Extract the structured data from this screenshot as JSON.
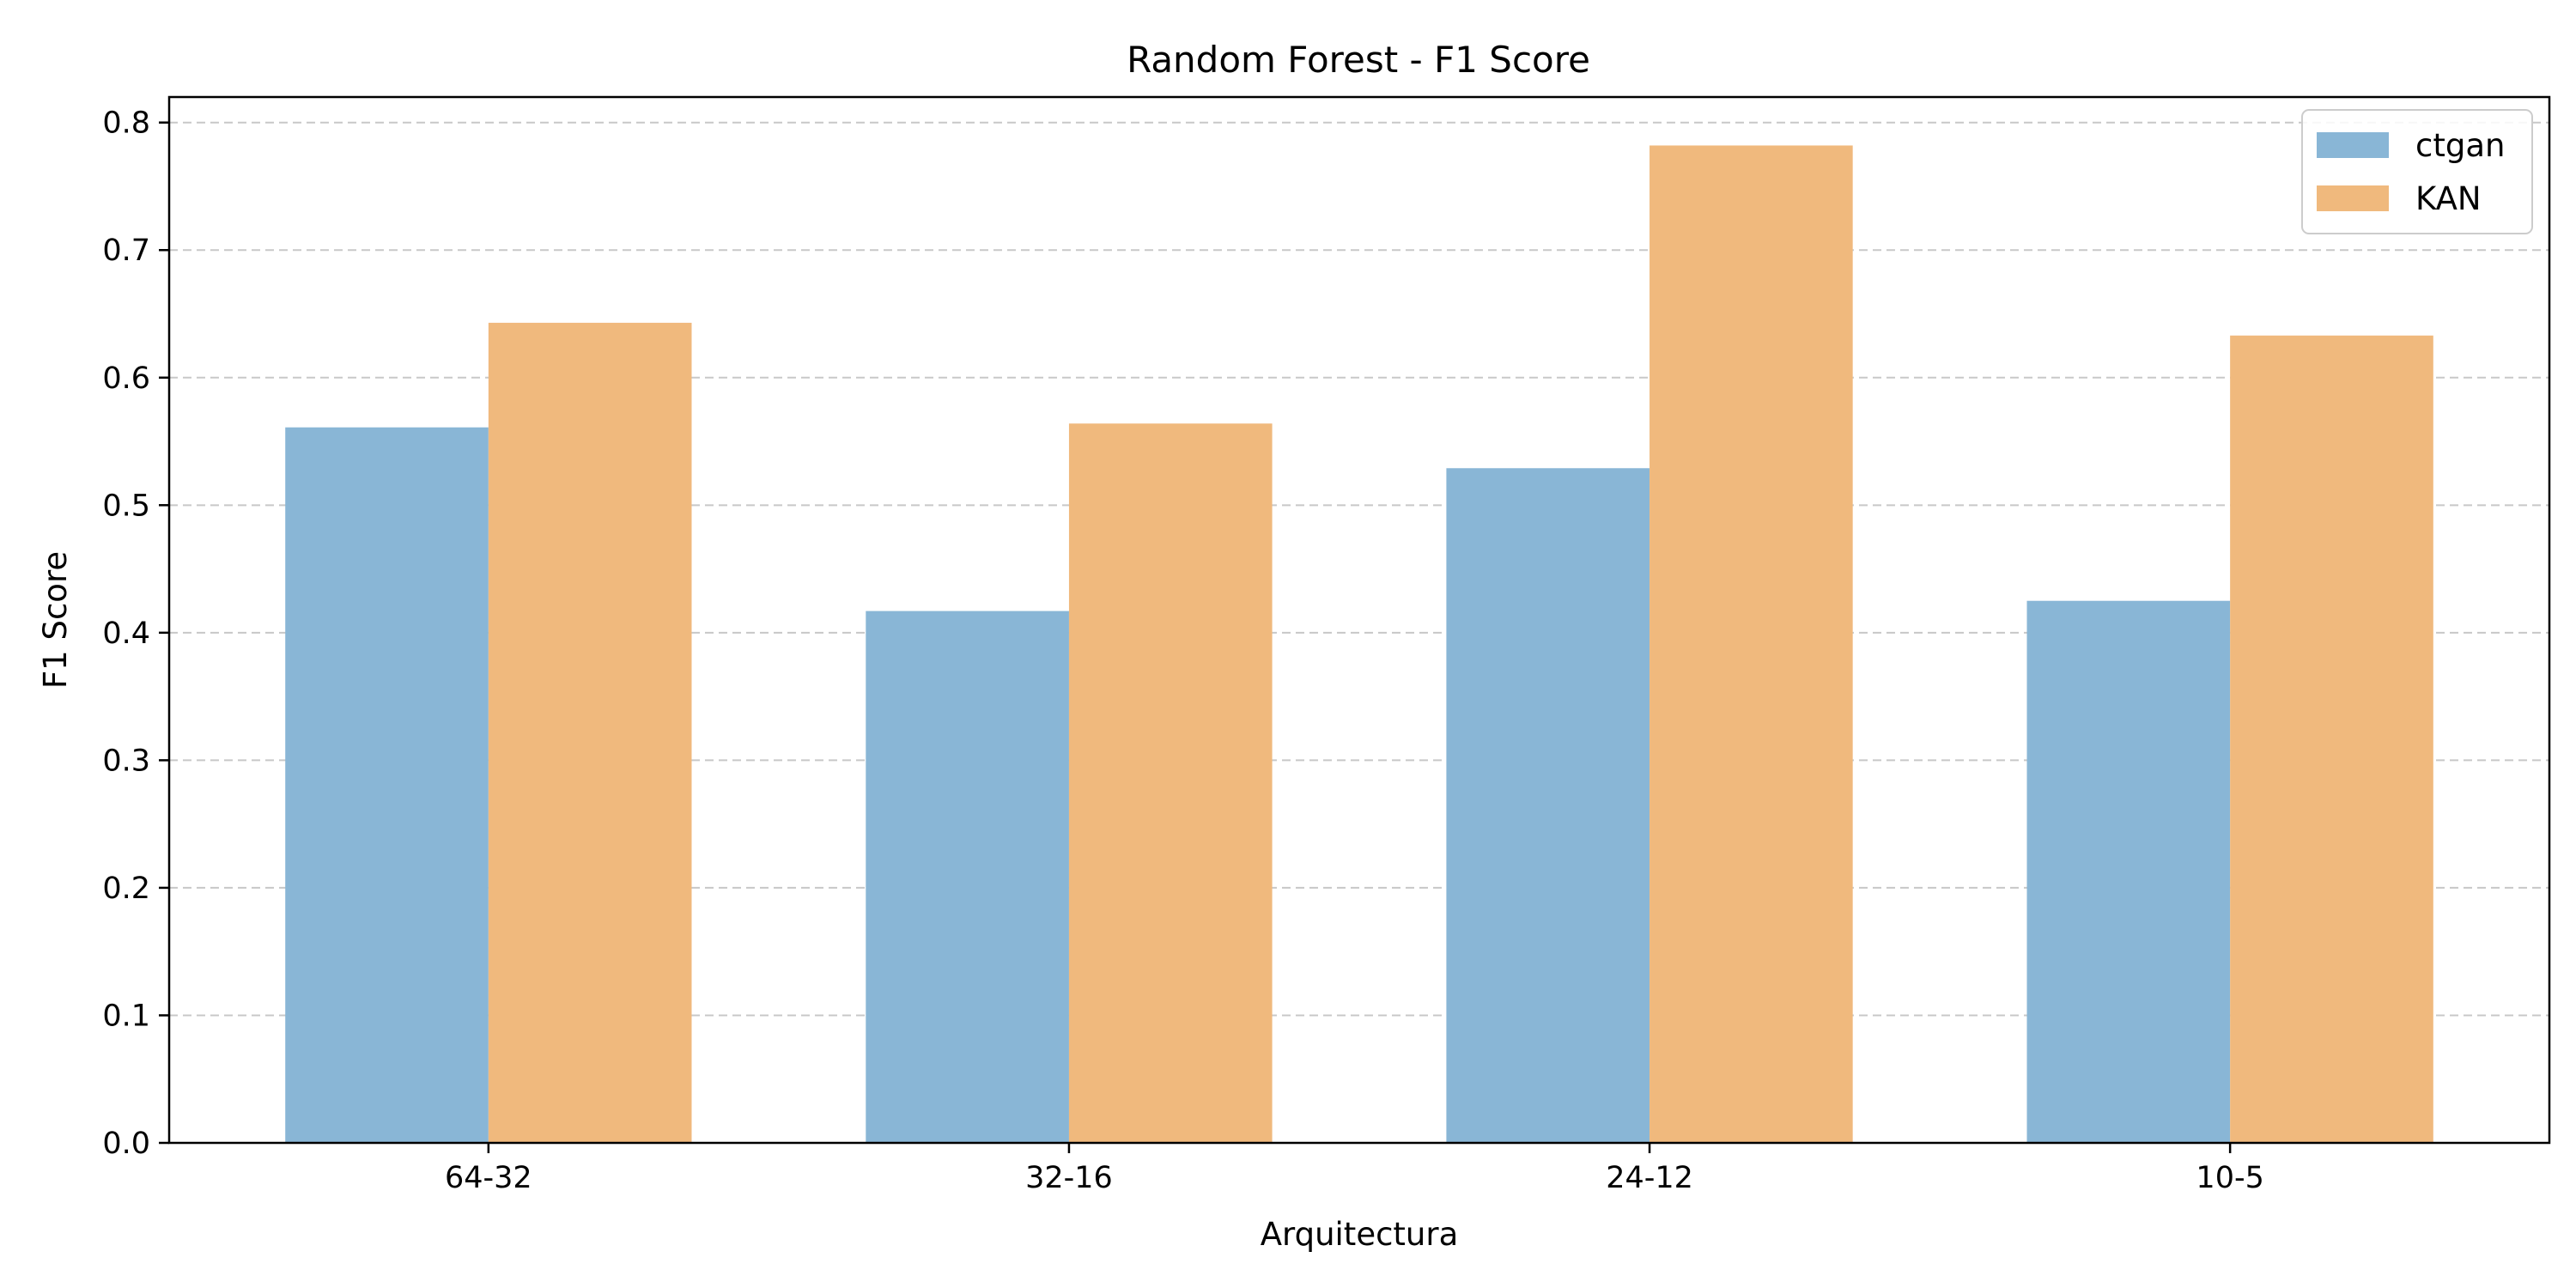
{
  "chart_data": {
    "type": "bar",
    "title": "Random Forest - F1 Score",
    "xlabel": "Arquitectura",
    "ylabel": "F1 Score",
    "categories": [
      "64-32",
      "32-16",
      "24-12",
      "10-5"
    ],
    "series": [
      {
        "name": "ctgan",
        "color": "#89b6d6",
        "values": [
          0.561,
          0.417,
          0.529,
          0.425
        ]
      },
      {
        "name": "KAN",
        "color": "#f0b97d",
        "values": [
          0.643,
          0.564,
          0.782,
          0.633
        ]
      }
    ],
    "ylim": [
      0.0,
      0.82
    ],
    "yticks": [
      "0.0",
      "0.1",
      "0.2",
      "0.3",
      "0.4",
      "0.5",
      "0.6",
      "0.7",
      "0.8"
    ],
    "grid": true,
    "legend": "top-right"
  }
}
